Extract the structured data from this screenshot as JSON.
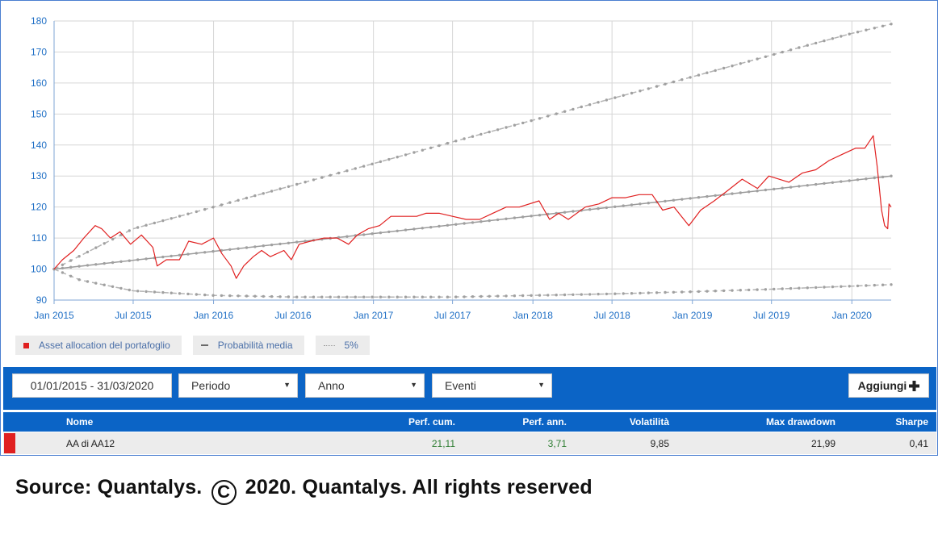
{
  "chart_data": {
    "type": "line",
    "xlim": [
      "2015-01-01",
      "2020-03-31"
    ],
    "ylim": [
      90,
      180
    ],
    "y_ticks": [
      90,
      100,
      110,
      120,
      130,
      140,
      150,
      160,
      170,
      180
    ],
    "x_tick_labels": [
      {
        "date": "2015-01-01",
        "label": "Jan 2015"
      },
      {
        "date": "2015-07-01",
        "label": "Jul 2015"
      },
      {
        "date": "2016-01-01",
        "label": "Jan 2016"
      },
      {
        "date": "2016-07-01",
        "label": "Jul 2016"
      },
      {
        "date": "2017-01-01",
        "label": "Jan 2017"
      },
      {
        "date": "2017-07-01",
        "label": "Jul 2017"
      },
      {
        "date": "2018-01-01",
        "label": "Jan 2018"
      },
      {
        "date": "2018-07-01",
        "label": "Jul 2018"
      },
      {
        "date": "2019-01-01",
        "label": "Jan 2019"
      },
      {
        "date": "2019-07-01",
        "label": "Jul 2019"
      },
      {
        "date": "2020-01-01",
        "label": "Jan 2020"
      }
    ],
    "grid": true,
    "legend_placement": "bottom-left",
    "series": [
      {
        "name": "Asset allocation del portafoglio",
        "color": "#e02020",
        "style": "solid",
        "points": [
          [
            "2015-01-01",
            100
          ],
          [
            "2015-01-20",
            103
          ],
          [
            "2015-02-15",
            106
          ],
          [
            "2015-03-10",
            110
          ],
          [
            "2015-04-05",
            114
          ],
          [
            "2015-04-20",
            113
          ],
          [
            "2015-05-10",
            110
          ],
          [
            "2015-06-01",
            112
          ],
          [
            "2015-06-25",
            108
          ],
          [
            "2015-07-20",
            111
          ],
          [
            "2015-08-15",
            107
          ],
          [
            "2015-08-25",
            101
          ],
          [
            "2015-09-15",
            103
          ],
          [
            "2015-10-15",
            103
          ],
          [
            "2015-11-05",
            109
          ],
          [
            "2015-12-05",
            108
          ],
          [
            "2016-01-01",
            110
          ],
          [
            "2016-01-20",
            105
          ],
          [
            "2016-02-10",
            101
          ],
          [
            "2016-02-22",
            97
          ],
          [
            "2016-03-10",
            101
          ],
          [
            "2016-04-01",
            104
          ],
          [
            "2016-04-20",
            106
          ],
          [
            "2016-05-10",
            104
          ],
          [
            "2016-06-10",
            106
          ],
          [
            "2016-06-27",
            103
          ],
          [
            "2016-07-15",
            108
          ],
          [
            "2016-08-10",
            109
          ],
          [
            "2016-09-10",
            110
          ],
          [
            "2016-10-10",
            110
          ],
          [
            "2016-11-05",
            108
          ],
          [
            "2016-11-25",
            111
          ],
          [
            "2016-12-20",
            113
          ],
          [
            "2017-01-15",
            114
          ],
          [
            "2017-02-10",
            117
          ],
          [
            "2017-03-10",
            117
          ],
          [
            "2017-04-10",
            117
          ],
          [
            "2017-05-01",
            118
          ],
          [
            "2017-06-01",
            118
          ],
          [
            "2017-07-01",
            117
          ],
          [
            "2017-08-01",
            116
          ],
          [
            "2017-09-01",
            116
          ],
          [
            "2017-10-01",
            118
          ],
          [
            "2017-11-01",
            120
          ],
          [
            "2017-12-01",
            120
          ],
          [
            "2018-01-15",
            122
          ],
          [
            "2018-02-08",
            116
          ],
          [
            "2018-03-01",
            118
          ],
          [
            "2018-03-23",
            116
          ],
          [
            "2018-05-01",
            120
          ],
          [
            "2018-06-01",
            121
          ],
          [
            "2018-07-01",
            123
          ],
          [
            "2018-08-01",
            123
          ],
          [
            "2018-09-01",
            124
          ],
          [
            "2018-10-01",
            124
          ],
          [
            "2018-10-25",
            119
          ],
          [
            "2018-11-20",
            120
          ],
          [
            "2018-12-24",
            114
          ],
          [
            "2019-01-20",
            119
          ],
          [
            "2019-02-20",
            122
          ],
          [
            "2019-03-20",
            125
          ],
          [
            "2019-04-25",
            129
          ],
          [
            "2019-05-30",
            126
          ],
          [
            "2019-06-25",
            130
          ],
          [
            "2019-08-10",
            128
          ],
          [
            "2019-09-10",
            131
          ],
          [
            "2019-10-10",
            132
          ],
          [
            "2019-11-10",
            135
          ],
          [
            "2019-12-10",
            137
          ],
          [
            "2020-01-10",
            139
          ],
          [
            "2020-01-31",
            139
          ],
          [
            "2020-02-19",
            143
          ],
          [
            "2020-02-28",
            133
          ],
          [
            "2020-03-09",
            119
          ],
          [
            "2020-03-16",
            114
          ],
          [
            "2020-03-23",
            113
          ],
          [
            "2020-03-26",
            121
          ],
          [
            "2020-03-31",
            120
          ]
        ]
      },
      {
        "name": "Probabilità media",
        "color": "#a6a6a6",
        "style": "solid-dotted-markers",
        "points": [
          [
            "2015-01-01",
            100
          ],
          [
            "2020-03-31",
            130
          ]
        ]
      },
      {
        "name": "5%",
        "color": "#a6a6a6",
        "style": "dashed",
        "points": [
          [
            "2015-01-01",
            100
          ],
          [
            "2015-07-01",
            113
          ],
          [
            "2016-01-01",
            120
          ],
          [
            "2016-07-01",
            127
          ],
          [
            "2017-01-01",
            134
          ],
          [
            "2017-07-01",
            141
          ],
          [
            "2018-01-01",
            148
          ],
          [
            "2018-07-01",
            155
          ],
          [
            "2019-01-01",
            162
          ],
          [
            "2019-07-01",
            169
          ],
          [
            "2020-01-01",
            176
          ],
          [
            "2020-03-31",
            179
          ]
        ]
      },
      {
        "style": "dashed",
        "color": "#a6a6a6",
        "points": [
          [
            "2015-01-01",
            100
          ],
          [
            "2015-03-01",
            96.5
          ],
          [
            "2015-07-01",
            93
          ],
          [
            "2016-01-01",
            91.5
          ],
          [
            "2016-07-01",
            91
          ],
          [
            "2017-01-01",
            91
          ],
          [
            "2017-07-01",
            91
          ],
          [
            "2018-01-01",
            91.5
          ],
          [
            "2018-07-01",
            92
          ],
          [
            "2019-01-01",
            92.7
          ],
          [
            "2019-07-01",
            93.5
          ],
          [
            "2020-01-01",
            94.5
          ],
          [
            "2020-03-31",
            95
          ]
        ]
      }
    ]
  },
  "legend": [
    {
      "label": "Asset allocation del portafoglio",
      "swatch": "red-square"
    },
    {
      "label": "Probabilità media",
      "swatch": "solid-line"
    },
    {
      "label": "5%",
      "swatch": "dotted-line"
    }
  ],
  "toolbar": {
    "date_range": "01/01/2015 - 31/03/2020",
    "period_select": "Periodo",
    "year_select": "Anno",
    "events_select": "Eventi",
    "add_label": "Aggiungi",
    "add_icon": "plus-icon"
  },
  "table": {
    "headers": {
      "name": "Nome",
      "perf_cum": "Perf. cum.",
      "perf_ann": "Perf. ann.",
      "volatility": "Volatilità",
      "max_drawdown": "Max drawdown",
      "sharpe": "Sharpe"
    },
    "row": {
      "name": "AA di AA12",
      "perf_cum": "21,11",
      "perf_ann": "3,71",
      "volatility": "9,85",
      "max_drawdown": "21,99",
      "sharpe": "0,41",
      "marker_color": "#e02020",
      "positive_color": "#2e7d32"
    }
  },
  "footer": {
    "source_prefix": "Source: Quantalys.",
    "copyright_symbol": "©",
    "source_suffix": "2020. Quantalys. All rights reserved"
  }
}
